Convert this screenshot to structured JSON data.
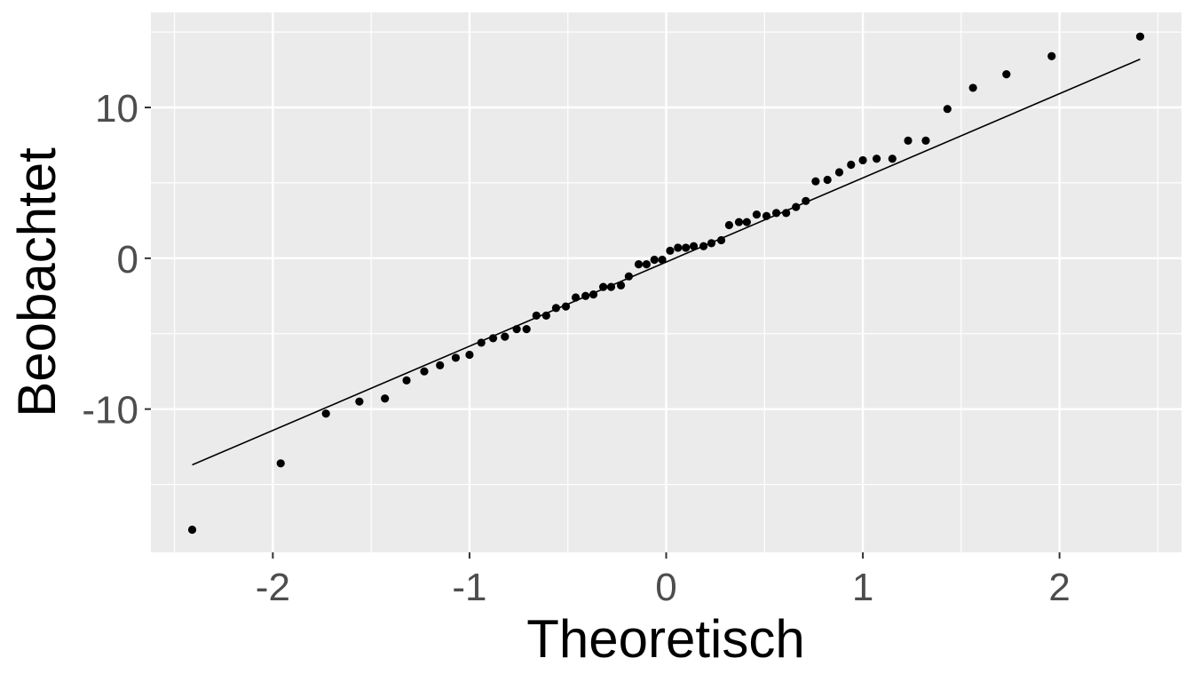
{
  "chart_data": {
    "type": "scatter",
    "title": "",
    "xlabel": "Theoretisch",
    "ylabel": "Beobachtet",
    "xlim": [
      -2.62,
      2.62
    ],
    "ylim": [
      -19.5,
      16.3
    ],
    "grid": true,
    "x_ticks": [
      -2,
      -1,
      0,
      1,
      2
    ],
    "x_tick_labels": [
      "-2",
      "-1",
      "0",
      "1",
      "2"
    ],
    "y_ticks": [
      -10,
      0,
      10
    ],
    "y_tick_labels": [
      "-10",
      "0",
      "10"
    ],
    "reference_line": {
      "x": [
        -2.41,
        2.41
      ],
      "y": [
        -13.7,
        13.2
      ]
    },
    "series": [
      {
        "points": [
          [
            -2.41,
            -18.0
          ],
          [
            -1.96,
            -13.6
          ],
          [
            -1.73,
            -10.3
          ],
          [
            -1.56,
            -9.5
          ],
          [
            -1.43,
            -9.3
          ],
          [
            -1.32,
            -8.1
          ],
          [
            -1.23,
            -7.5
          ],
          [
            -1.15,
            -7.1
          ],
          [
            -1.07,
            -6.6
          ],
          [
            -1.0,
            -6.4
          ],
          [
            -0.94,
            -5.6
          ],
          [
            -0.88,
            -5.3
          ],
          [
            -0.82,
            -5.2
          ],
          [
            -0.76,
            -4.7
          ],
          [
            -0.71,
            -4.7
          ],
          [
            -0.66,
            -3.8
          ],
          [
            -0.61,
            -3.8
          ],
          [
            -0.56,
            -3.3
          ],
          [
            -0.51,
            -3.2
          ],
          [
            -0.46,
            -2.6
          ],
          [
            -0.41,
            -2.5
          ],
          [
            -0.37,
            -2.4
          ],
          [
            -0.32,
            -1.9
          ],
          [
            -0.28,
            -1.9
          ],
          [
            -0.23,
            -1.8
          ],
          [
            -0.19,
            -1.2
          ],
          [
            -0.14,
            -0.4
          ],
          [
            -0.1,
            -0.4
          ],
          [
            -0.06,
            -0.1
          ],
          [
            -0.02,
            -0.1
          ],
          [
            0.02,
            0.5
          ],
          [
            0.06,
            0.7
          ],
          [
            0.1,
            0.7
          ],
          [
            0.14,
            0.8
          ],
          [
            0.19,
            0.8
          ],
          [
            0.23,
            1.0
          ],
          [
            0.28,
            1.2
          ],
          [
            0.32,
            2.2
          ],
          [
            0.37,
            2.4
          ],
          [
            0.41,
            2.4
          ],
          [
            0.46,
            2.9
          ],
          [
            0.51,
            2.8
          ],
          [
            0.56,
            3.0
          ],
          [
            0.61,
            3.0
          ],
          [
            0.66,
            3.4
          ],
          [
            0.71,
            3.8
          ],
          [
            0.76,
            5.1
          ],
          [
            0.82,
            5.2
          ],
          [
            0.88,
            5.7
          ],
          [
            0.94,
            6.2
          ],
          [
            1.0,
            6.5
          ],
          [
            1.07,
            6.6
          ],
          [
            1.15,
            6.6
          ],
          [
            1.23,
            7.8
          ],
          [
            1.32,
            7.8
          ],
          [
            1.43,
            9.9
          ],
          [
            1.56,
            11.3
          ],
          [
            1.73,
            12.2
          ],
          [
            1.96,
            13.4
          ],
          [
            2.41,
            14.7
          ]
        ]
      }
    ]
  }
}
